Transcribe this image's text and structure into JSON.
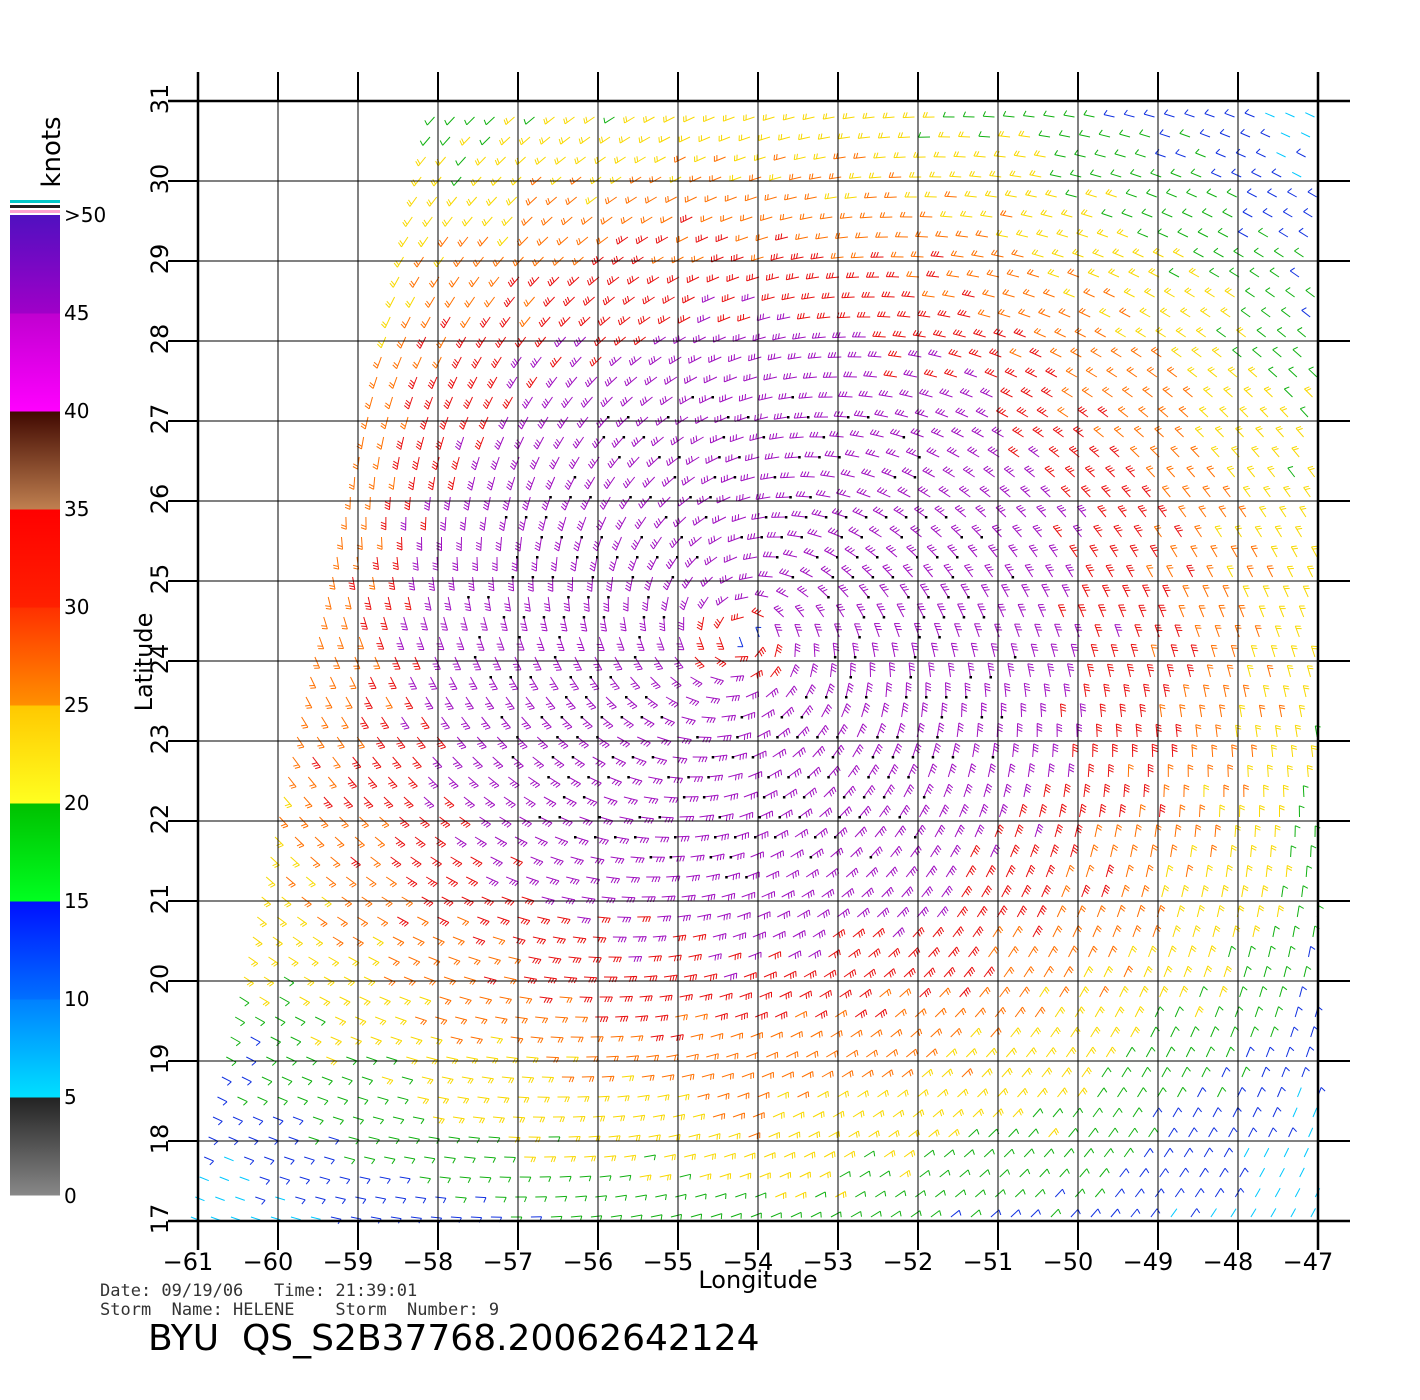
{
  "map": {
    "x_label": "Longitude",
    "y_label": "Latitude",
    "lon_ticks": [
      "-61",
      "-60",
      "-59",
      "-58",
      "-57",
      "-56",
      "-55",
      "-54",
      "-53",
      "-52",
      "-51",
      "-50",
      "-49",
      "-48",
      "-47"
    ],
    "lat_ticks": [
      "17",
      "18",
      "19",
      "20",
      "21",
      "22",
      "23",
      "24",
      "25",
      "26",
      "27",
      "28",
      "29",
      "30",
      "31"
    ],
    "lon_range": [
      -61,
      -47
    ],
    "lat_range": [
      17,
      31
    ],
    "storm_center": {
      "lon": -54.2,
      "lat": 24.3
    }
  },
  "colorbar": {
    "unit": "knots",
    "labels": [
      "0",
      "5",
      "10",
      "15",
      "20",
      "25",
      "30",
      "35",
      "40",
      "45",
      ">50"
    ],
    "stops": [
      {
        "from": 0,
        "to": 5,
        "top": "#222222",
        "bottom": "#888888"
      },
      {
        "from": 5,
        "to": 10,
        "top": "#0080ff",
        "bottom": "#00e0ff"
      },
      {
        "from": 10,
        "to": 15,
        "top": "#0010ff",
        "bottom": "#0070ff"
      },
      {
        "from": 15,
        "to": 20,
        "top": "#00c000",
        "bottom": "#00ff20"
      },
      {
        "from": 20,
        "to": 25,
        "top": "#ffc800",
        "bottom": "#ffff20"
      },
      {
        "from": 25,
        "to": 30,
        "top": "#ff3000",
        "bottom": "#ff9000"
      },
      {
        "from": 30,
        "to": 35,
        "top": "#ff0000",
        "bottom": "#ff2000"
      },
      {
        "from": 35,
        "to": 40,
        "top": "#400800",
        "bottom": "#c08050"
      },
      {
        "from": 40,
        "to": 45,
        "top": "#c000d0",
        "bottom": "#ff00ff"
      },
      {
        "from": 45,
        "to": 50,
        "top": "#5010c0",
        "bottom": "#a000c8"
      }
    ],
    "flag_colors": [
      "#00c8c8",
      "#202020",
      "#ffa0d0"
    ]
  },
  "info": {
    "date_line": "Date: 09/19/06   Time: 21:39:01",
    "storm_line": "Storm  Name: HELENE    Storm  Number: 9"
  },
  "title": "BYU  QS_S2B37768.20062642124"
}
